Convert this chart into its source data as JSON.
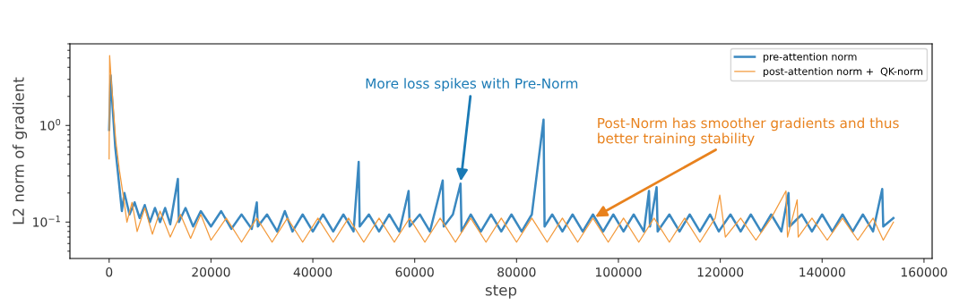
{
  "chart_data": {
    "type": "line",
    "xlabel": "step",
    "ylabel": "L2 norm of gradient",
    "log": "y",
    "grid": false,
    "legend": "top right",
    "marker": "none",
    "line_style": "solid",
    "xlim": [
      -7700,
      161600
    ],
    "ylim": [
      0.042,
      7
    ],
    "xticks": [
      0,
      20000,
      40000,
      60000,
      80000,
      100000,
      120000,
      140000,
      160000
    ],
    "yticks": [
      {
        "value": 1,
        "label": "10$^{0}$"
      },
      {
        "value": 0.1,
        "label": "10$^{−1}$"
      }
    ],
    "annotations": [
      {
        "text": "More loss spikes with Pre-Norm",
        "x": 69000,
        "y": 0.25
      },
      {
        "text": "Post-Norm has smoother gradients and thus\nbetter training stability",
        "x": 95000,
        "y": 0.11
      }
    ],
    "series": [
      {
        "name": "pre-attention norm",
        "color": "#3a88c0",
        "x": [
          0,
          300,
          700,
          1200,
          1800,
          2500,
          3000,
          4000,
          5000,
          6000,
          7000,
          8000,
          9000,
          10000,
          11000,
          12000,
          13500,
          13700,
          15000,
          16500,
          18000,
          20000,
          22000,
          24000,
          26000,
          28000,
          29000,
          29200,
          31000,
          33000,
          34500,
          36000,
          38000,
          40000,
          42000,
          44000,
          46000,
          48000,
          49000,
          49200,
          51000,
          53000,
          55000,
          57000,
          58800,
          59000,
          61000,
          63000,
          65500,
          65700,
          67500,
          69000,
          69200,
          71000,
          73000,
          75000,
          77000,
          79000,
          81000,
          83000,
          85300,
          85500,
          87000,
          89000,
          91000,
          93000,
          95000,
          97000,
          99000,
          101000,
          103000,
          105000,
          106000,
          106200,
          107500,
          107700,
          110000,
          112000,
          114000,
          116000,
          118000,
          119700,
          122000,
          124000,
          126000,
          128000,
          130000,
          132000,
          133400,
          133600,
          136000,
          138000,
          140000,
          142000,
          144000,
          146000,
          148000,
          150000,
          151800,
          152000,
          154000
        ],
        "values": [
          0.9,
          3.3,
          1.5,
          0.6,
          0.3,
          0.13,
          0.2,
          0.12,
          0.16,
          0.11,
          0.15,
          0.1,
          0.14,
          0.1,
          0.14,
          0.095,
          0.28,
          0.1,
          0.14,
          0.09,
          0.13,
          0.09,
          0.13,
          0.085,
          0.12,
          0.085,
          0.16,
          0.09,
          0.12,
          0.08,
          0.13,
          0.08,
          0.12,
          0.08,
          0.12,
          0.08,
          0.12,
          0.08,
          0.42,
          0.09,
          0.12,
          0.08,
          0.12,
          0.08,
          0.21,
          0.09,
          0.12,
          0.08,
          0.27,
          0.09,
          0.12,
          0.25,
          0.08,
          0.12,
          0.08,
          0.12,
          0.08,
          0.12,
          0.08,
          0.12,
          1.15,
          0.09,
          0.12,
          0.08,
          0.12,
          0.08,
          0.12,
          0.08,
          0.12,
          0.08,
          0.12,
          0.08,
          0.21,
          0.09,
          0.23,
          0.08,
          0.12,
          0.08,
          0.12,
          0.08,
          0.12,
          0.08,
          0.12,
          0.08,
          0.12,
          0.08,
          0.12,
          0.08,
          0.2,
          0.09,
          0.12,
          0.08,
          0.12,
          0.08,
          0.12,
          0.08,
          0.12,
          0.08,
          0.22,
          0.09,
          0.11
        ]
      },
      {
        "name": "post-attention norm +  QK-norm",
        "color": "#f39a3c",
        "x": [
          0,
          100,
          400,
          800,
          1300,
          2000,
          2700,
          3500,
          4500,
          5500,
          7000,
          8500,
          10000,
          12000,
          14000,
          16000,
          18000,
          20000,
          23000,
          26000,
          29000,
          32000,
          35000,
          38000,
          41000,
          44000,
          47000,
          50000,
          53000,
          56000,
          59000,
          62000,
          65000,
          68000,
          71000,
          74000,
          77000,
          80000,
          83000,
          86000,
          89000,
          92000,
          95000,
          98000,
          101000,
          104000,
          107000,
          110000,
          113000,
          116000,
          119000,
          119900,
          121000,
          124000,
          127000,
          130000,
          132900,
          133200,
          135100,
          135300,
          138000,
          141000,
          144000,
          147000,
          150000,
          152000,
          154000
        ],
        "values": [
          0.45,
          5.3,
          3.0,
          1.6,
          0.7,
          0.35,
          0.2,
          0.1,
          0.16,
          0.08,
          0.14,
          0.075,
          0.13,
          0.07,
          0.12,
          0.068,
          0.12,
          0.065,
          0.11,
          0.062,
          0.11,
          0.062,
          0.11,
          0.062,
          0.11,
          0.062,
          0.11,
          0.062,
          0.11,
          0.062,
          0.11,
          0.062,
          0.11,
          0.062,
          0.11,
          0.062,
          0.11,
          0.062,
          0.11,
          0.062,
          0.11,
          0.062,
          0.11,
          0.062,
          0.11,
          0.062,
          0.11,
          0.062,
          0.11,
          0.062,
          0.11,
          0.19,
          0.07,
          0.11,
          0.065,
          0.11,
          0.21,
          0.07,
          0.17,
          0.07,
          0.11,
          0.065,
          0.11,
          0.065,
          0.11,
          0.065,
          0.1
        ]
      }
    ]
  }
}
